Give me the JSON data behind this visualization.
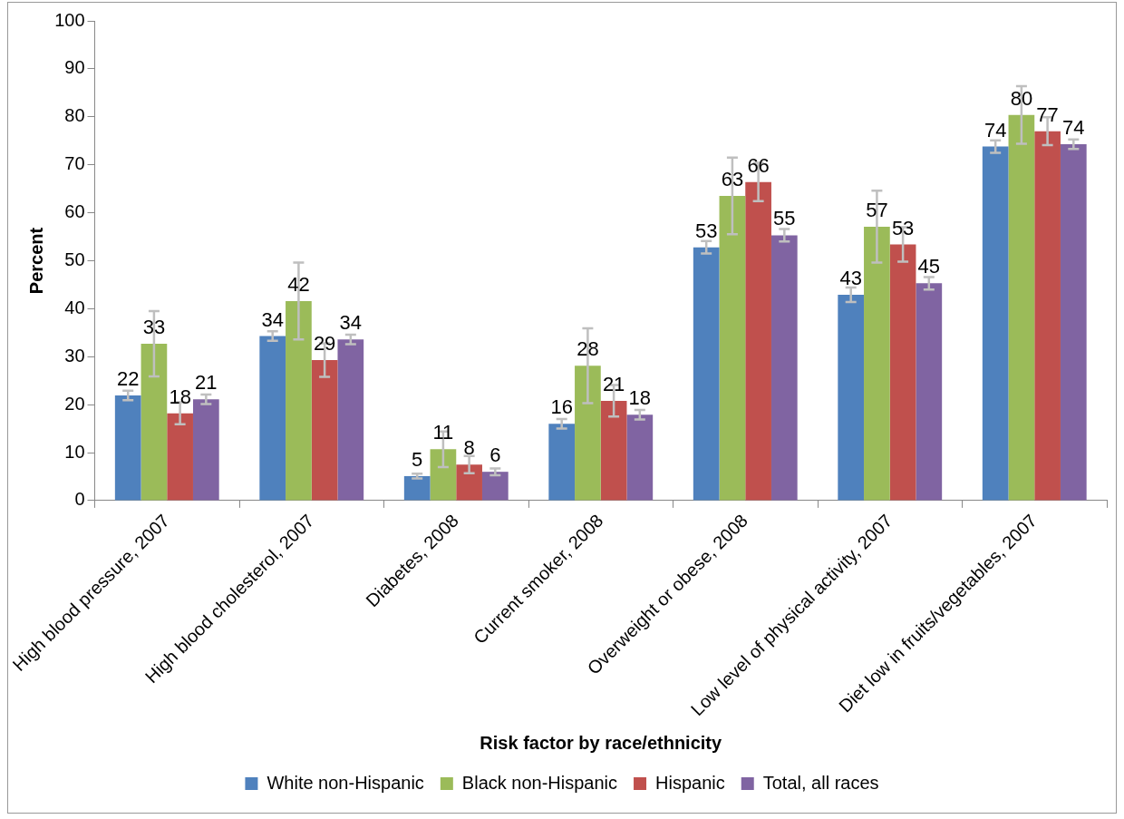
{
  "chart_data": {
    "type": "bar",
    "xlabel": "Risk factor by race/ethnicity",
    "ylabel": "Percent",
    "categories": [
      "High blood pressure, 2007",
      "High blood cholesterol, 2007",
      "Diabetes, 2008",
      "Current smoker, 2008",
      "Overweight or obese, 2008",
      "Low level of physical activity, 2007",
      "Diet low in fruits/vegetables, 2007"
    ],
    "series": [
      {
        "name": "White non-Hispanic",
        "color": "#4f81bd",
        "values": [
          21.9,
          34.3,
          5.1,
          16.0,
          52.8,
          42.9,
          73.8
        ],
        "errors": [
          1,
          1,
          0.5,
          1,
          1.3,
          1.5,
          1.3
        ],
        "value_labels": [
          "22",
          "34",
          "5",
          "16",
          "53",
          "43",
          "74"
        ]
      },
      {
        "name": "Black non-Hispanic",
        "color": "#9bbb59",
        "values": [
          32.7,
          41.6,
          10.7,
          28.1,
          63.5,
          57.1,
          80.4
        ],
        "errors": [
          6.8,
          8,
          3.7,
          7.8,
          8,
          7.5,
          6
        ],
        "value_labels": [
          "33",
          "42",
          "11",
          "28",
          "63",
          "57",
          "80"
        ]
      },
      {
        "name": "Hispanic",
        "color": "#c0504d",
        "values": [
          18.2,
          29.3,
          7.5,
          20.8,
          66.4,
          53.4,
          77.0
        ],
        "errors": [
          2.3,
          3.5,
          1.8,
          3.3,
          4,
          3.6,
          2.9
        ],
        "value_labels": [
          "18",
          "29",
          "8",
          "21",
          "66",
          "53",
          "77"
        ]
      },
      {
        "name": "Total, all races",
        "color": "#8064a2",
        "values": [
          21.1,
          33.6,
          6.0,
          17.9,
          55.3,
          45.3,
          74.3
        ],
        "errors": [
          1,
          1,
          0.7,
          1,
          1.3,
          1.3,
          1
        ],
        "value_labels": [
          "21",
          "34",
          "6",
          "18",
          "55",
          "45",
          "74"
        ]
      }
    ],
    "ylim": [
      0,
      100
    ],
    "yticks": [
      0,
      10,
      20,
      30,
      40,
      50,
      60,
      70,
      80,
      90,
      100
    ],
    "grid": false,
    "legend": "bottom"
  }
}
